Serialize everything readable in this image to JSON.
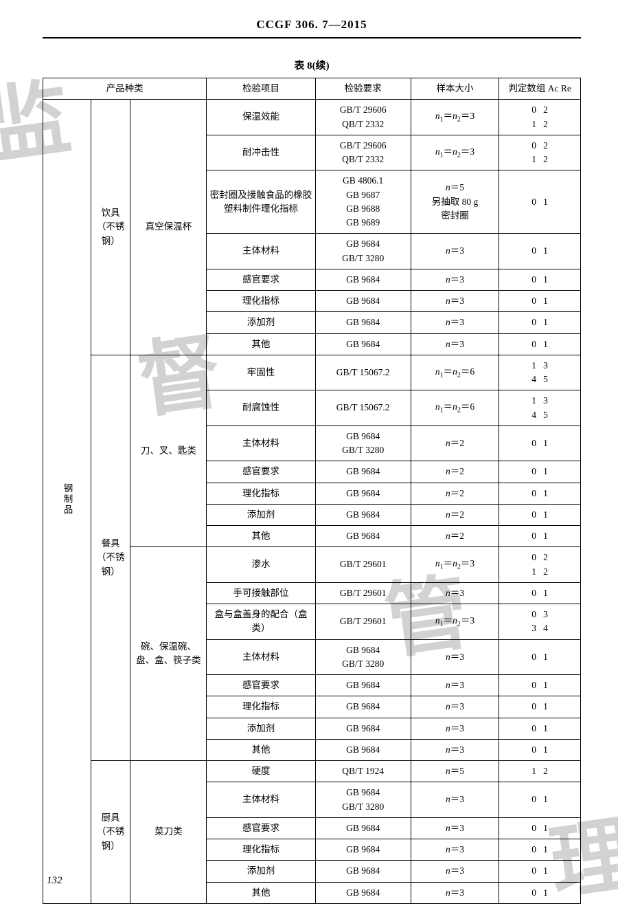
{
  "header": "CCGF 306. 7—2015",
  "caption": "表 8(续)",
  "page_num": "132",
  "cols": {
    "category": "产品种类",
    "item": "检验项目",
    "req": "检验要求",
    "sample": "样本大小",
    "acre": "判定数组 Ac Re"
  },
  "c1": "钢制品",
  "c2a": "饮具（不锈钢）",
  "c2b": "餐具（不锈钢）",
  "c2c": "厨具（不锈钢）",
  "c3a": "真空保温杯",
  "c3b": "刀、叉、匙类",
  "c3c": "碗、保温碗、盘、盒、筷子类",
  "c3d": "菜刀类",
  "rows": {
    "r1": {
      "item": "保温效能",
      "req": "GB/T 29606\nQB/T 2332",
      "samp": "n₁＝n₂＝3",
      "acre": "0   2\n1   2"
    },
    "r2": {
      "item": "耐冲击性",
      "req": "GB/T 29606\nQB/T 2332",
      "samp": "n₁＝n₂＝3",
      "acre": "0   2\n1   2"
    },
    "r3": {
      "item": "密封圈及接触食品的橡胶塑料制件理化指标",
      "req": "GB 4806.1\nGB 9687\nGB 9688\nGB 9689",
      "samp": "n＝5\n另抽取 80 g\n密封圈",
      "acre": "0   1"
    },
    "r4": {
      "item": "主体材料",
      "req": "GB 9684\nGB/T 3280",
      "samp": "n＝3",
      "acre": "0   1"
    },
    "r5": {
      "item": "感官要求",
      "req": "GB 9684",
      "samp": "n＝3",
      "acre": "0   1"
    },
    "r6": {
      "item": "理化指标",
      "req": "GB 9684",
      "samp": "n＝3",
      "acre": "0   1"
    },
    "r7": {
      "item": "添加剂",
      "req": "GB 9684",
      "samp": "n＝3",
      "acre": "0   1"
    },
    "r8": {
      "item": "其他",
      "req": "GB 9684",
      "samp": "n＝3",
      "acre": "0   1"
    },
    "r9": {
      "item": "牢固性",
      "req": "GB/T 15067.2",
      "samp": "n₁＝n₂＝6",
      "acre": "1   3\n4   5"
    },
    "r10": {
      "item": "耐腐蚀性",
      "req": "GB/T 15067.2",
      "samp": "n₁＝n₂＝6",
      "acre": "1   3\n4   5"
    },
    "r11": {
      "item": "主体材料",
      "req": "GB 9684\nGB/T 3280",
      "samp": "n＝2",
      "acre": "0   1"
    },
    "r12": {
      "item": "感官要求",
      "req": "GB 9684",
      "samp": "n＝2",
      "acre": "0   1"
    },
    "r13": {
      "item": "理化指标",
      "req": "GB 9684",
      "samp": "n＝2",
      "acre": "0   1"
    },
    "r14": {
      "item": "添加剂",
      "req": "GB 9684",
      "samp": "n＝2",
      "acre": "0   1"
    },
    "r15": {
      "item": "其他",
      "req": "GB 9684",
      "samp": "n＝2",
      "acre": "0   1"
    },
    "r16": {
      "item": "渗水",
      "req": "GB/T 29601",
      "samp": "n₁＝n₂＝3",
      "acre": "0   2\n1   2"
    },
    "r17": {
      "item": "手可接触部位",
      "req": "GB/T 29601",
      "samp": "n＝3",
      "acre": "0   1"
    },
    "r18": {
      "item": "盒与盒盖身的配合（盒类）",
      "req": "GB/T 29601",
      "samp": "n₁＝n₂＝3",
      "acre": "0   3\n3   4"
    },
    "r19": {
      "item": "主体材料",
      "req": "GB 9684\nGB/T 3280",
      "samp": "n＝3",
      "acre": "0   1"
    },
    "r20": {
      "item": "感官要求",
      "req": "GB 9684",
      "samp": "n＝3",
      "acre": "0   1"
    },
    "r21": {
      "item": "理化指标",
      "req": "GB 9684",
      "samp": "n＝3",
      "acre": "0   1"
    },
    "r22": {
      "item": "添加剂",
      "req": "GB 9684",
      "samp": "n＝3",
      "acre": "0   1"
    },
    "r23": {
      "item": "其他",
      "req": "GB 9684",
      "samp": "n＝3",
      "acre": "0   1"
    },
    "r24": {
      "item": "硬度",
      "req": "QB/T 1924",
      "samp": "n＝5",
      "acre": "1   2"
    },
    "r25": {
      "item": "主体材料",
      "req": "GB 9684\nGB/T 3280",
      "samp": "n＝3",
      "acre": "0   1"
    },
    "r26": {
      "item": "感官要求",
      "req": "GB 9684",
      "samp": "n＝3",
      "acre": "0   1"
    },
    "r27": {
      "item": "理化指标",
      "req": "GB 9684",
      "samp": "n＝3",
      "acre": "0   1"
    },
    "r28": {
      "item": "添加剂",
      "req": "GB 9684",
      "samp": "n＝3",
      "acre": "0   1"
    },
    "r29": {
      "item": "其他",
      "req": "GB 9684",
      "samp": "n＝3",
      "acre": "0   1"
    }
  }
}
